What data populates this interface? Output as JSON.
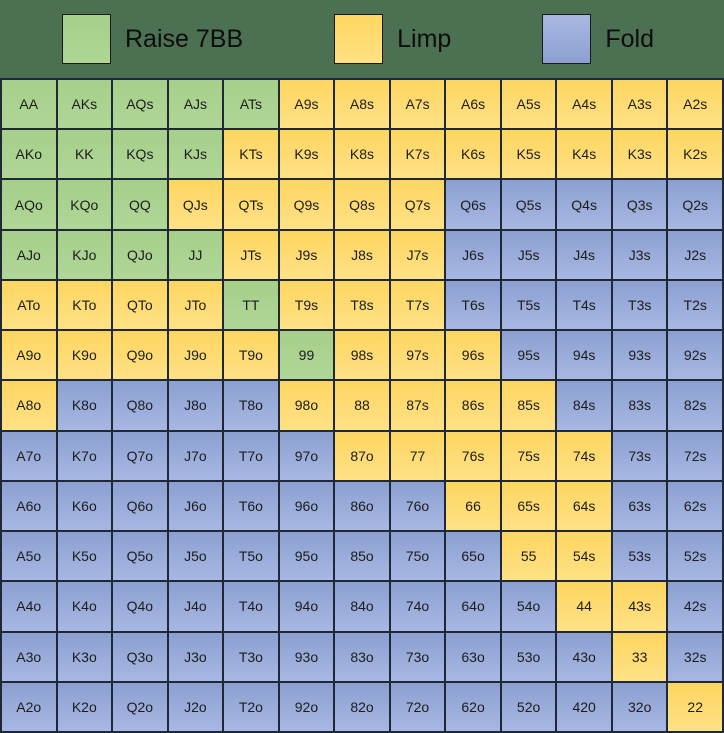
{
  "legend": {
    "items": [
      {
        "label": "Raise 7BB",
        "action": "raise",
        "color": "#a9d18e"
      },
      {
        "label": "Limp",
        "action": "limp",
        "color": "#ffd966"
      },
      {
        "label": "Fold",
        "action": "fold",
        "color": "#94a8d8"
      }
    ]
  },
  "colors": {
    "background": "#4c7052",
    "grid_line": "#1e2836",
    "raise": "#a9d18e",
    "limp": "#ffd966",
    "fold": "#94a8d8",
    "cell_text": "#1c1c1c"
  },
  "chart_data": {
    "type": "heatmap",
    "legend_entries": [
      "Raise 7BB",
      "Limp",
      "Fold"
    ],
    "legend_position": "top",
    "action_key": {
      "G": "Raise 7BB",
      "L": "Limp",
      "F": "Fold"
    },
    "labels": [
      [
        "AA",
        "AKs",
        "AQs",
        "AJs",
        "ATs",
        "A9s",
        "A8s",
        "A7s",
        "A6s",
        "A5s",
        "A4s",
        "A3s",
        "A2s"
      ],
      [
        "AKo",
        "KK",
        "KQs",
        "KJs",
        "KTs",
        "K9s",
        "K8s",
        "K7s",
        "K6s",
        "K5s",
        "K4s",
        "K3s",
        "K2s"
      ],
      [
        "AQo",
        "KQo",
        "QQ",
        "QJs",
        "QTs",
        "Q9s",
        "Q8s",
        "Q7s",
        "Q6s",
        "Q5s",
        "Q4s",
        "Q3s",
        "Q2s"
      ],
      [
        "AJo",
        "KJo",
        "QJo",
        "JJ",
        "JTs",
        "J9s",
        "J8s",
        "J7s",
        "J6s",
        "J5s",
        "J4s",
        "J3s",
        "J2s"
      ],
      [
        "ATo",
        "KTo",
        "QTo",
        "JTo",
        "TT",
        "T9s",
        "T8s",
        "T7s",
        "T6s",
        "T5s",
        "T4s",
        "T3s",
        "T2s"
      ],
      [
        "A9o",
        "K9o",
        "Q9o",
        "J9o",
        "T9o",
        "99",
        "98s",
        "97s",
        "96s",
        "95s",
        "94s",
        "93s",
        "92s"
      ],
      [
        "A8o",
        "K8o",
        "Q8o",
        "J8o",
        "T8o",
        "98o",
        "88",
        "87s",
        "86s",
        "85s",
        "84s",
        "83s",
        "82s"
      ],
      [
        "A7o",
        "K7o",
        "Q7o",
        "J7o",
        "T7o",
        "97o",
        "87o",
        "77",
        "76s",
        "75s",
        "74s",
        "73s",
        "72s"
      ],
      [
        "A6o",
        "K6o",
        "Q6o",
        "J6o",
        "T6o",
        "96o",
        "86o",
        "76o",
        "66",
        "65s",
        "64s",
        "63s",
        "62s"
      ],
      [
        "A5o",
        "K5o",
        "Q5o",
        "J5o",
        "T5o",
        "95o",
        "85o",
        "75o",
        "65o",
        "55",
        "54s",
        "53s",
        "52s"
      ],
      [
        "A4o",
        "K4o",
        "Q4o",
        "J4o",
        "T4o",
        "94o",
        "84o",
        "74o",
        "64o",
        "54o",
        "44",
        "43s",
        "42s"
      ],
      [
        "A3o",
        "K3o",
        "Q3o",
        "J3o",
        "T3o",
        "93o",
        "83o",
        "73o",
        "63o",
        "53o",
        "43o",
        "33",
        "32s"
      ],
      [
        "A2o",
        "K2o",
        "Q2o",
        "J2o",
        "T2o",
        "92o",
        "82o",
        "72o",
        "62o",
        "52o",
        "420",
        "32o",
        "22"
      ]
    ],
    "actions": [
      "GGGGGLLLLLLLL",
      "GGGGLLLLLLLLL",
      "GGGLLLLLFFFFF",
      "GGGGLLLLFFFFF",
      "LLLLGLLLFFFFF",
      "LLLLLGLLLFFFF",
      "LFFFFLLLLLFFF",
      "FFFFFFLLLLLFF",
      "FFFFFFFFLLLFF",
      "FFFFFFFFFLLFF",
      "FFFFFFFFFFLLF",
      "FFFFFFFFFFFLF",
      "FFFFFFFFFFFFL"
    ]
  }
}
